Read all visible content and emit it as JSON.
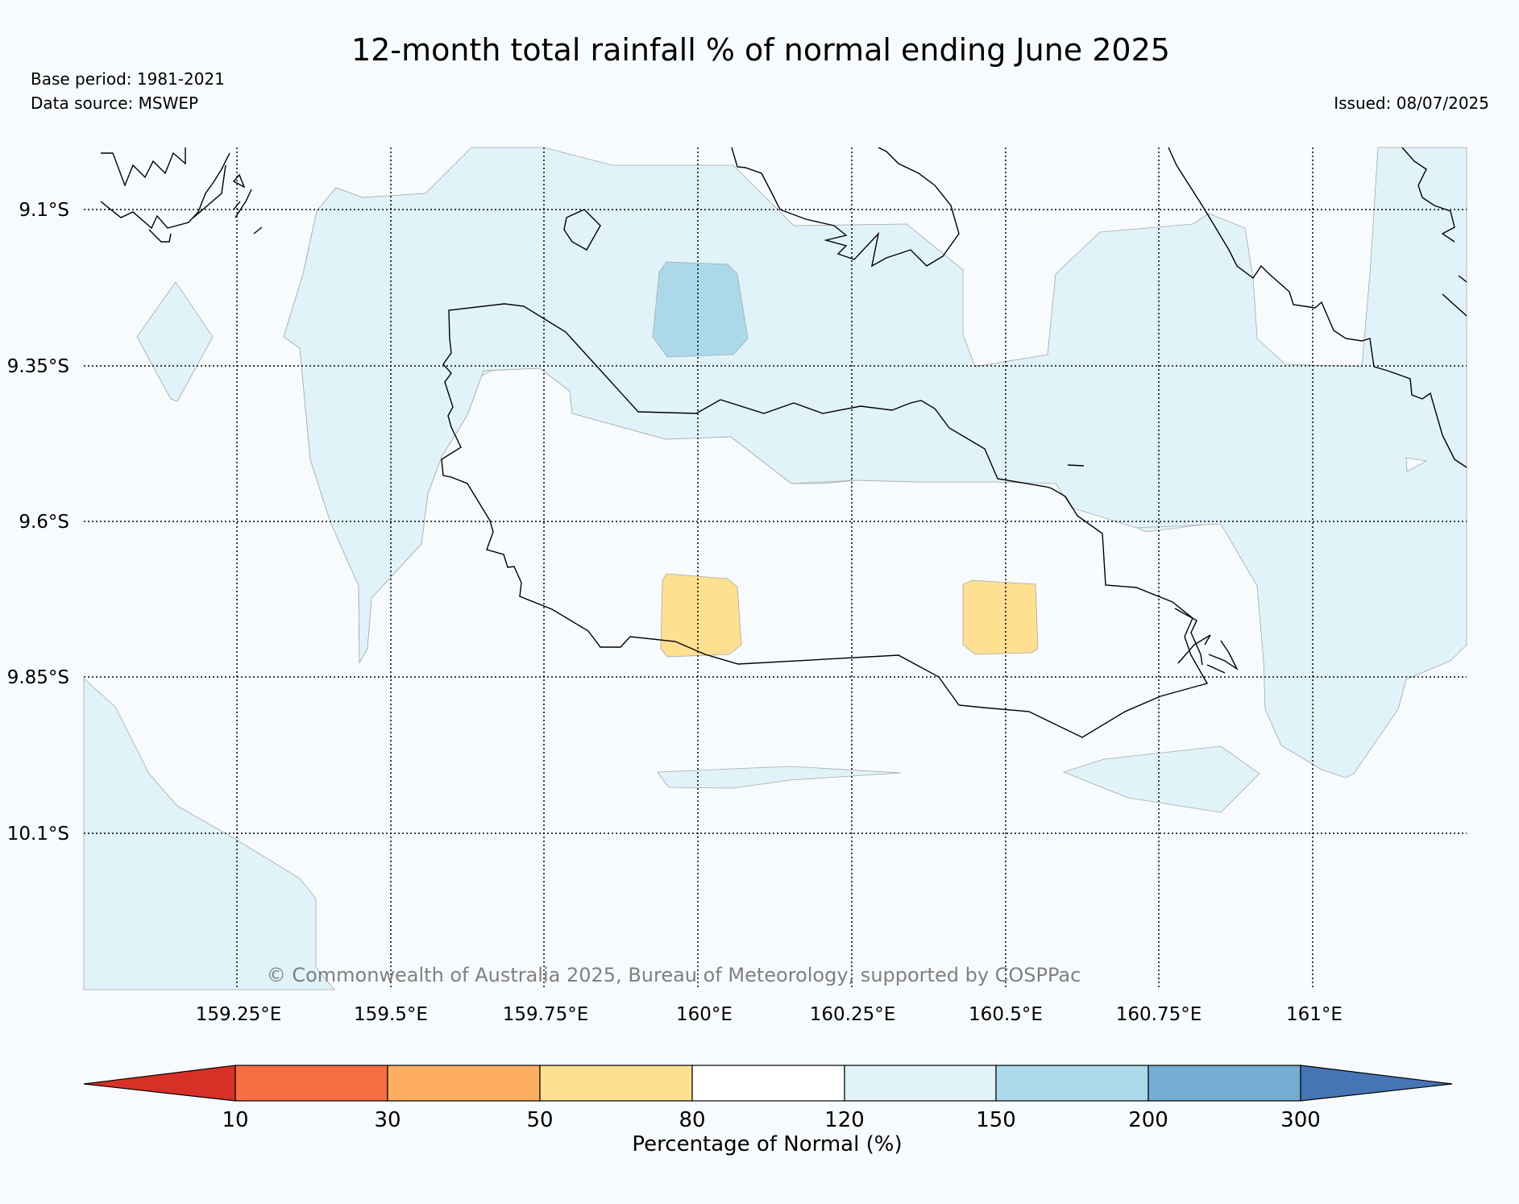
{
  "header": {
    "title": "12-month total rainfall % of normal ending June 2025",
    "base_period": "Base period: 1981-2021",
    "data_source": "Data source: MSWEP",
    "issued": "Issued: 08/07/2025"
  },
  "map": {
    "latitude_ticks": [
      "9.1°S",
      "9.35°S",
      "9.6°S",
      "9.85°S",
      "10.1°S"
    ],
    "longitude_ticks": [
      "159.25°E",
      "159.5°E",
      "159.75°E",
      "160°E",
      "160.25°E",
      "160.5°E",
      "160.75°E",
      "161°E"
    ],
    "credit": "© Commonwealth of Australia 2025, Bureau of Meteorology, supported by COSPPac",
    "colors": {
      "background": "#f7fbfd",
      "cat_120_150": "#e0f3f8",
      "cat_150_200": "#abd9e9",
      "cat_50_80": "#fee090",
      "coastline": "#000000"
    }
  },
  "legend": {
    "label": "Percentage of Normal (%)",
    "ticks": [
      "10",
      "30",
      "50",
      "80",
      "120",
      "150",
      "200",
      "300"
    ],
    "colors": [
      "#d73027",
      "#f46d43",
      "#fdae61",
      "#fee090",
      "#ffffff",
      "#e0f3f8",
      "#abd9e9",
      "#74add1",
      "#4575b4"
    ]
  }
}
